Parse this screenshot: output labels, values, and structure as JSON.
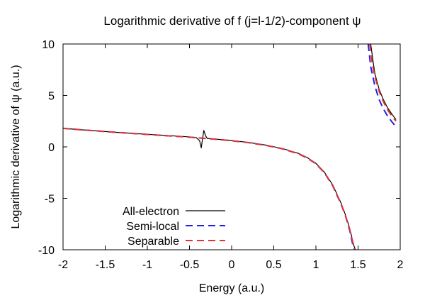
{
  "chart_data": {
    "type": "line",
    "title": "Logarithmic derivative of f (j=l-1/2)-component ψ",
    "xlabel": "Energy (a.u.)",
    "ylabel": "Logarithmic derivative of ψ (a.u.)",
    "xlim": [
      -2,
      2
    ],
    "ylim": [
      -10,
      10
    ],
    "xticks": [
      -2,
      -1.5,
      -1,
      -0.5,
      0,
      0.5,
      1,
      1.5,
      2
    ],
    "yticks": [
      -10,
      -5,
      0,
      5,
      10
    ],
    "xtick_labels": [
      "-2",
      "-1.5",
      "-1",
      "-0.5",
      "0",
      "0.5",
      "1",
      "1.5",
      "2"
    ],
    "ytick_labels": [
      "-10",
      "-5",
      "0",
      "5",
      "10"
    ],
    "grid": false,
    "legend_position": "bottom-left",
    "series": [
      {
        "name": "All-electron",
        "color": "#000000",
        "dash": "solid",
        "segments": [
          [
            [
              -2.0,
              1.8
            ],
            [
              -1.8,
              1.67
            ],
            [
              -1.6,
              1.55
            ],
            [
              -1.4,
              1.43
            ],
            [
              -1.2,
              1.33
            ],
            [
              -1.0,
              1.22
            ],
            [
              -0.8,
              1.12
            ],
            [
              -0.6,
              1.02
            ],
            [
              -0.5,
              0.97
            ],
            [
              -0.42,
              0.9
            ],
            [
              -0.38,
              0.6
            ],
            [
              -0.36,
              -0.1
            ],
            [
              -0.35,
              0.5
            ],
            [
              -0.33,
              1.6
            ],
            [
              -0.31,
              1.1
            ],
            [
              -0.29,
              0.82
            ],
            [
              -0.2,
              0.76
            ],
            [
              0.0,
              0.62
            ],
            [
              0.2,
              0.43
            ],
            [
              0.4,
              0.18
            ],
            [
              0.6,
              -0.15
            ],
            [
              0.8,
              -0.65
            ],
            [
              0.9,
              -1.05
            ],
            [
              1.0,
              -1.6
            ],
            [
              1.1,
              -2.45
            ],
            [
              1.2,
              -3.7
            ],
            [
              1.3,
              -5.5
            ],
            [
              1.35,
              -6.6
            ],
            [
              1.4,
              -7.9
            ],
            [
              1.45,
              -9.6
            ],
            [
              1.47,
              -10.0
            ]
          ],
          [
            [
              1.65,
              10.0
            ],
            [
              1.68,
              8.2
            ],
            [
              1.7,
              7.1
            ],
            [
              1.75,
              5.6
            ],
            [
              1.8,
              4.6
            ],
            [
              1.85,
              3.8
            ],
            [
              1.9,
              3.2
            ],
            [
              1.95,
              2.65
            ]
          ]
        ]
      },
      {
        "name": "Semi-local",
        "color": "#1f1fe6",
        "dash": "dashed",
        "segments": [
          [
            [
              -2.0,
              1.8
            ],
            [
              -1.8,
              1.67
            ],
            [
              -1.6,
              1.55
            ],
            [
              -1.4,
              1.43
            ],
            [
              -1.2,
              1.32
            ],
            [
              -1.0,
              1.21
            ],
            [
              -0.8,
              1.1
            ],
            [
              -0.6,
              1.0
            ],
            [
              -0.4,
              0.88
            ],
            [
              -0.2,
              0.75
            ],
            [
              0.0,
              0.6
            ],
            [
              0.2,
              0.41
            ],
            [
              0.4,
              0.16
            ],
            [
              0.6,
              -0.18
            ],
            [
              0.8,
              -0.7
            ],
            [
              0.9,
              -1.1
            ],
            [
              1.0,
              -1.65
            ],
            [
              1.1,
              -2.5
            ],
            [
              1.2,
              -3.8
            ],
            [
              1.3,
              -5.6
            ],
            [
              1.35,
              -6.7
            ],
            [
              1.4,
              -8.1
            ],
            [
              1.44,
              -9.6
            ],
            [
              1.46,
              -10.0
            ]
          ],
          [
            [
              1.62,
              10.0
            ],
            [
              1.65,
              7.8
            ],
            [
              1.7,
              5.9
            ],
            [
              1.75,
              4.6
            ],
            [
              1.8,
              3.7
            ],
            [
              1.85,
              3.0
            ],
            [
              1.9,
              2.45
            ],
            [
              1.95,
              1.95
            ]
          ]
        ]
      },
      {
        "name": "Separable",
        "color": "#e63232",
        "dash": "dashed",
        "segments": [
          [
            [
              -2.0,
              1.8
            ],
            [
              -1.8,
              1.67
            ],
            [
              -1.6,
              1.55
            ],
            [
              -1.4,
              1.43
            ],
            [
              -1.2,
              1.32
            ],
            [
              -1.0,
              1.21
            ],
            [
              -0.8,
              1.1
            ],
            [
              -0.6,
              1.0
            ],
            [
              -0.4,
              0.88
            ],
            [
              -0.2,
              0.75
            ],
            [
              0.0,
              0.6
            ],
            [
              0.2,
              0.41
            ],
            [
              0.4,
              0.16
            ],
            [
              0.6,
              -0.18
            ],
            [
              0.8,
              -0.68
            ],
            [
              0.9,
              -1.08
            ],
            [
              1.0,
              -1.62
            ],
            [
              1.1,
              -2.48
            ],
            [
              1.2,
              -3.75
            ],
            [
              1.3,
              -5.55
            ],
            [
              1.35,
              -6.65
            ],
            [
              1.4,
              -8.0
            ],
            [
              1.45,
              -9.7
            ],
            [
              1.47,
              -10.0
            ]
          ],
          [
            [
              1.64,
              10.0
            ],
            [
              1.67,
              8.0
            ],
            [
              1.7,
              6.8
            ],
            [
              1.75,
              5.4
            ],
            [
              1.8,
              4.4
            ],
            [
              1.85,
              3.6
            ],
            [
              1.9,
              3.0
            ],
            [
              1.95,
              2.5
            ]
          ]
        ]
      }
    ]
  }
}
